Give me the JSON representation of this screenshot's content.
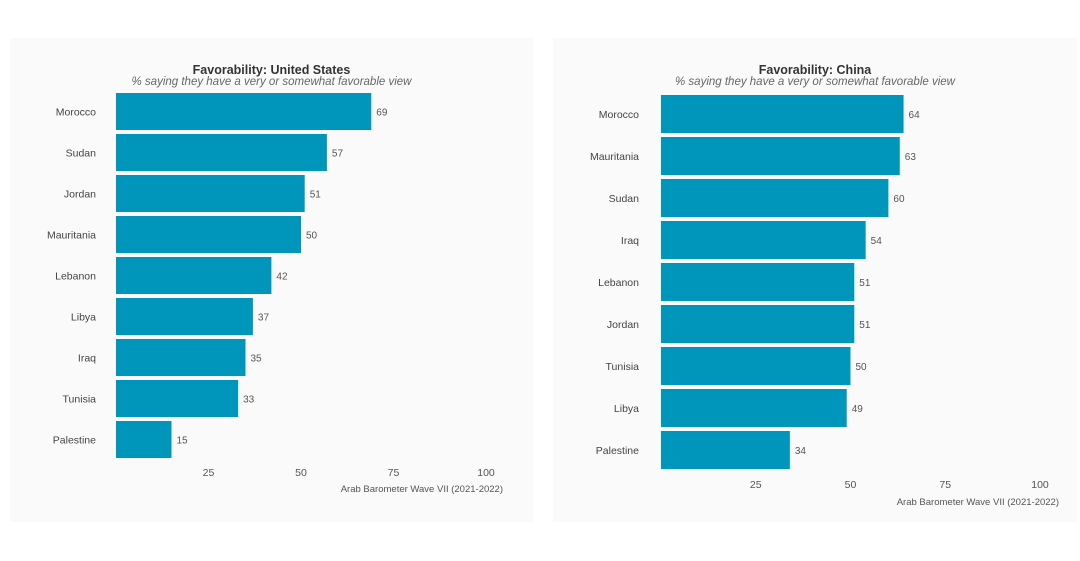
{
  "chart_data": [
    {
      "type": "bar",
      "orientation": "horizontal",
      "title": "Favorability: United States",
      "subtitle": "% saying they have a very or somewhat favorable view",
      "caption": "Arab Barometer Wave VII (2021-2022)",
      "categories": [
        "Morocco",
        "Sudan",
        "Jordan",
        "Mauritania",
        "Lebanon",
        "Libya",
        "Iraq",
        "Tunisia",
        "Palestine"
      ],
      "values": [
        69,
        57,
        51,
        50,
        42,
        37,
        35,
        33,
        15
      ],
      "xticks": [
        "25",
        "50",
        "75",
        "100"
      ],
      "xlim": [
        0,
        100
      ],
      "bar_color": "#0096bb",
      "grid": false
    },
    {
      "type": "bar",
      "orientation": "horizontal",
      "title": "Favorability: China",
      "subtitle": "% saying they have a very or somewhat favorable view",
      "caption": "Arab Barometer Wave VII (2021-2022)",
      "categories": [
        "Morocco",
        "Mauritania",
        "Sudan",
        "Iraq",
        "Lebanon",
        "Jordan",
        "Tunisia",
        "Libya",
        "Palestine"
      ],
      "values": [
        64,
        63,
        60,
        54,
        51,
        51,
        50,
        49,
        34
      ],
      "xticks": [
        "25",
        "50",
        "75",
        "100"
      ],
      "xlim": [
        0,
        100
      ],
      "bar_color": "#0096bb",
      "grid": false
    }
  ]
}
